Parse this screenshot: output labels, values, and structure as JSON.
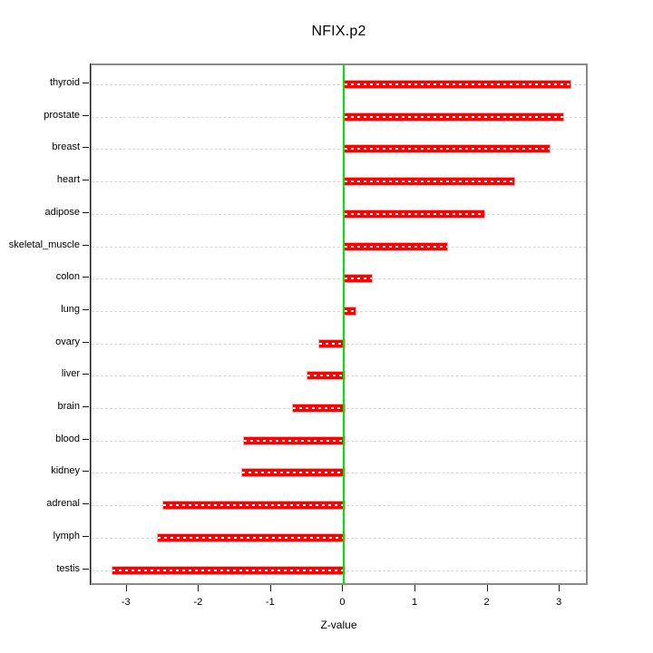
{
  "title": "NFIX.p2",
  "chart_data": {
    "type": "bar",
    "orientation": "horizontal",
    "title": "NFIX.p2",
    "xlabel": "Z-value",
    "ylabel": "",
    "categories": [
      "thyroid",
      "prostate",
      "breast",
      "heart",
      "adipose",
      "skeletal_muscle",
      "colon",
      "lung",
      "ovary",
      "liver",
      "brain",
      "blood",
      "kidney",
      "adrenal",
      "lymph",
      "testis"
    ],
    "values": [
      3.12,
      3.02,
      2.84,
      2.35,
      1.93,
      1.42,
      0.37,
      0.15,
      -0.36,
      -0.52,
      -0.72,
      -1.4,
      -1.42,
      -2.52,
      -2.6,
      -3.22
    ],
    "x_ticks": [
      -3,
      -2,
      -1,
      0,
      1,
      2,
      3
    ],
    "xlim": [
      -3.5,
      3.4
    ],
    "grid": true,
    "legend": false,
    "colors": {
      "bar_fill": "#ff0000",
      "bar_border": "#ffaaaa",
      "bar_center_dash": "#ffffff",
      "zero_line": "#00e400",
      "grid_line": "#d9d9d9",
      "box_border": "#8a8a8a",
      "axis": "#1a1a1a",
      "text": "#000000"
    }
  }
}
